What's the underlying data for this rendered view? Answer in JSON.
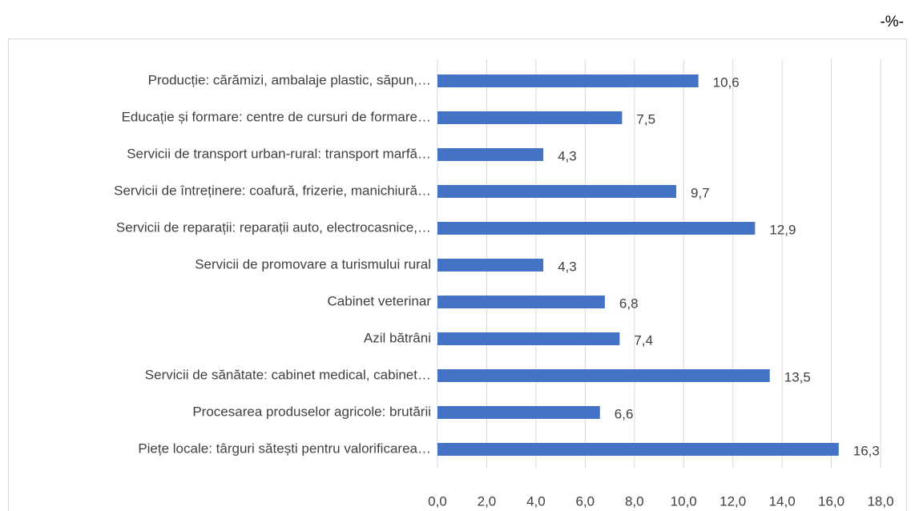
{
  "chart_data": {
    "type": "bar",
    "orientation": "horizontal",
    "unit_label": "-%-",
    "categories": [
      "Producție: cărămizi, ambalaje plastic, săpun,…",
      "Educație și formare: centre de cursuri de formare…",
      "Servicii de transport urban-rural: transport marfă…",
      "Servicii de întreținere: coafură, frizerie, manichiură…",
      "Servicii de reparații: reparații auto, electrocasnice,…",
      "Servicii de promovare a turismului rural",
      "Cabinet veterinar",
      "Azil bătrâni",
      "Servicii de sănătate: cabinet medical, cabinet…",
      "Procesarea produselor agricole: brutării",
      "Piețe locale: târguri sătești pentru valorificarea…"
    ],
    "values": [
      10.6,
      7.5,
      4.3,
      9.7,
      12.9,
      4.3,
      6.8,
      7.4,
      13.5,
      6.6,
      16.3
    ],
    "value_labels": [
      "10,6",
      "7,5",
      "4,3",
      "9,7",
      "12,9",
      "4,3",
      "6,8",
      "7,4",
      "13,5",
      "6,6",
      "16,3"
    ],
    "color": "#4472c4",
    "xlim": [
      0,
      18
    ],
    "xticks": [
      {
        "value": 0,
        "label": "0,0"
      },
      {
        "value": 2,
        "label": "2,0"
      },
      {
        "value": 4,
        "label": "4,0"
      },
      {
        "value": 6,
        "label": "6,0"
      },
      {
        "value": 8,
        "label": "8,0"
      },
      {
        "value": 10,
        "label": "10,0"
      },
      {
        "value": 12,
        "label": "12,0"
      },
      {
        "value": 14,
        "label": "14,0"
      },
      {
        "value": 16,
        "label": "16,0"
      },
      {
        "value": 18,
        "label": "18,0"
      }
    ],
    "grid": true
  }
}
